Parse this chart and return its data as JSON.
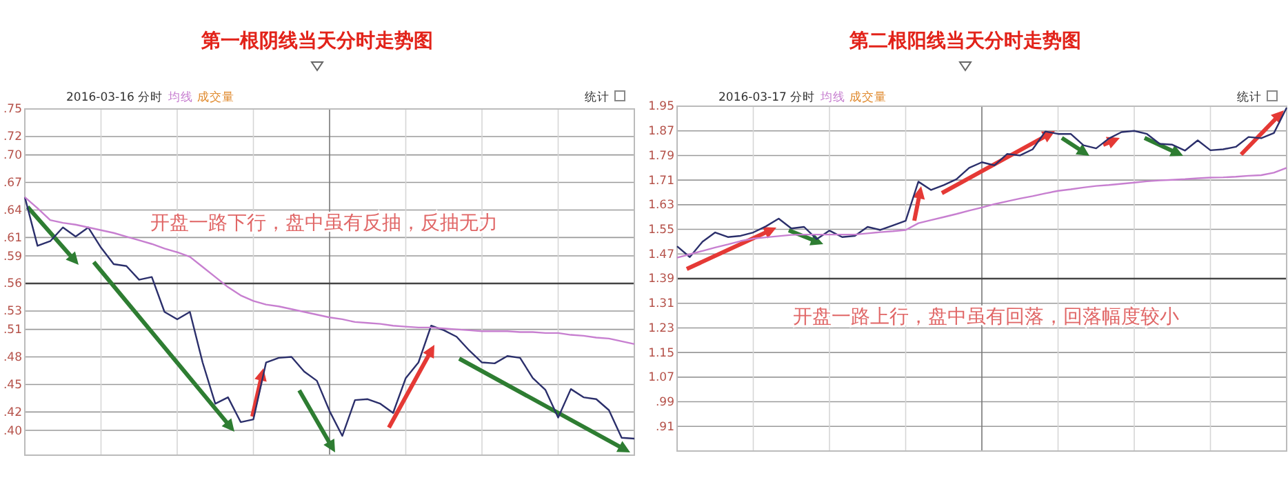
{
  "chart_data": [
    {
      "type": "line",
      "title": "第一根阴线当天分时走势图",
      "subtitle": "2016-03-16 分时",
      "annotations": [
        "成交量",
        "统计",
        "开盘一路下行，盘中虽有反抽，反抽无力"
      ],
      "categories": [
        null,
        null,
        null,
        null,
        null,
        null,
        null,
        null,
        null,
        null,
        null,
        null,
        null,
        null,
        null,
        null,
        null,
        null,
        null,
        null,
        null,
        null,
        null,
        null,
        null,
        null,
        null,
        null,
        null,
        null,
        null,
        null,
        null,
        null,
        null,
        null,
        null,
        null,
        null,
        null,
        null,
        null,
        null,
        null,
        null,
        null,
        null,
        null,
        null
      ],
      "ylim": [
        0.373,
        0.75
      ],
      "yticks": [
        {
          "value": 0.75,
          "label": ".75"
        },
        {
          "value": 0.72,
          "label": ".72"
        },
        {
          "value": 0.7,
          "label": ".70"
        },
        {
          "value": 0.67,
          "label": ".67"
        },
        {
          "value": 0.64,
          "label": ".64"
        },
        {
          "value": 0.61,
          "label": ".61"
        },
        {
          "value": 0.59,
          "label": ".59"
        },
        {
          "value": 0.56,
          "label": ".56"
        },
        {
          "value": 0.53,
          "label": ".53"
        },
        {
          "value": 0.51,
          "label": ".51"
        },
        {
          "value": 0.48,
          "label": ".48"
        },
        {
          "value": 0.45,
          "label": ".45"
        },
        {
          "value": 0.42,
          "label": ".42"
        },
        {
          "value": 0.4,
          "label": ".40"
        }
      ],
      "grid": true,
      "tick_labels": "y",
      "ref_lines": [
        {
          "axis": "y",
          "value": 0.56,
          "color": "#444444"
        }
      ],
      "series": [
        {
          "color": "#2b2f6b",
          "values": [
            0.654,
            0.601,
            0.606,
            0.621,
            0.611,
            0.621,
            0.599,
            0.581,
            0.579,
            0.564,
            0.567,
            0.529,
            0.521,
            0.529,
            0.474,
            0.429,
            0.436,
            0.409,
            0.412,
            0.474,
            0.479,
            0.48,
            0.464,
            0.454,
            0.421,
            0.394,
            0.433,
            0.434,
            0.429,
            0.419,
            0.457,
            0.474,
            0.514,
            0.509,
            0.502,
            0.487,
            0.474,
            0.473,
            0.481,
            0.479,
            0.457,
            0.444,
            0.414,
            0.445,
            0.436,
            0.434,
            0.422,
            0.392,
            0.391
          ]
        },
        {
          "name": "均线",
          "color": "#c77fd0",
          "values": [
            0.654,
            0.642,
            0.629,
            0.626,
            0.624,
            0.621,
            0.618,
            0.615,
            0.611,
            0.607,
            0.603,
            0.598,
            0.594,
            0.589,
            0.578,
            0.567,
            0.556,
            0.547,
            0.541,
            0.537,
            0.535,
            0.532,
            0.529,
            0.526,
            0.523,
            0.521,
            0.518,
            0.517,
            0.516,
            0.514,
            0.513,
            0.512,
            0.512,
            0.511,
            0.51,
            0.509,
            0.508,
            0.508,
            0.508,
            0.507,
            0.507,
            0.506,
            0.506,
            0.504,
            0.503,
            0.501,
            0.5,
            0.497,
            0.494
          ]
        }
      ]
    },
    {
      "type": "line",
      "title": "第二根阳线当天分时走势图",
      "subtitle": "2016-03-17 分时",
      "annotations": [
        "成交量",
        "统计",
        "开盘一路上行，盘中虽有回落，回落幅度较小"
      ],
      "categories": [
        null,
        null,
        null,
        null,
        null,
        null,
        null,
        null,
        null,
        null,
        null,
        null,
        null,
        null,
        null,
        null,
        null,
        null,
        null,
        null,
        null,
        null,
        null,
        null,
        null,
        null,
        null,
        null,
        null,
        null,
        null,
        null,
        null,
        null,
        null,
        null,
        null,
        null,
        null,
        null,
        null,
        null,
        null,
        null,
        null,
        null,
        null,
        null,
        null
      ],
      "ylim": [
        0.83,
        1.95
      ],
      "yticks": [
        1.95,
        1.87,
        1.79,
        1.71,
        1.63,
        1.55,
        1.47,
        1.39,
        1.31,
        1.23,
        1.15,
        1.07,
        {
          "value": 0.99,
          "label": ".99"
        },
        {
          "value": 0.91,
          "label": ".91"
        }
      ],
      "grid": true,
      "tick_labels": "y",
      "ref_lines": [
        {
          "axis": "y",
          "value": 1.39,
          "color": "#444444"
        }
      ],
      "series": [
        {
          "color": "#2b2f6b",
          "values": [
            1.495,
            1.46,
            1.51,
            1.54,
            1.525,
            1.529,
            1.54,
            1.56,
            1.585,
            1.553,
            1.558,
            1.518,
            1.546,
            1.525,
            1.529,
            1.558,
            1.548,
            1.563,
            1.578,
            1.705,
            1.678,
            1.694,
            1.713,
            1.75,
            1.768,
            1.758,
            1.795,
            1.79,
            1.81,
            1.868,
            1.86,
            1.86,
            1.823,
            1.813,
            1.845,
            1.866,
            1.87,
            1.86,
            1.828,
            1.825,
            1.806,
            1.839,
            1.807,
            1.81,
            1.818,
            1.85,
            1.846,
            1.863,
            1.945
          ]
        },
        {
          "name": "均线",
          "color": "#c77fd0",
          "values": [
            1.458,
            1.469,
            1.48,
            1.491,
            1.501,
            1.512,
            1.52,
            1.524,
            1.528,
            1.532,
            1.533,
            1.533,
            1.533,
            1.533,
            1.533,
            1.537,
            1.541,
            1.544,
            1.548,
            1.57,
            1.58,
            1.59,
            1.6,
            1.611,
            1.621,
            1.632,
            1.641,
            1.65,
            1.658,
            1.667,
            1.675,
            1.68,
            1.686,
            1.691,
            1.694,
            1.698,
            1.702,
            1.706,
            1.709,
            1.711,
            1.713,
            1.716,
            1.718,
            1.719,
            1.721,
            1.724,
            1.726,
            1.734,
            1.75
          ]
        }
      ]
    }
  ]
}
